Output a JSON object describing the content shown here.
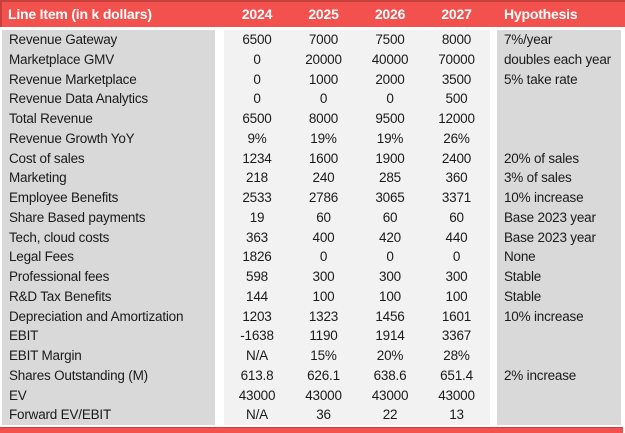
{
  "chart_data": {
    "type": "table",
    "columns": [
      "Line Item (in k dollars)",
      "2024",
      "2025",
      "2026",
      "2027",
      "Hypothesis"
    ],
    "rows": [
      {
        "label": "Revenue Gateway",
        "values": [
          "6500",
          "7000",
          "7500",
          "8000"
        ],
        "hypothesis": "7%/year"
      },
      {
        "label": "Marketplace GMV",
        "values": [
          "0",
          "20000",
          "40000",
          "70000"
        ],
        "hypothesis": "doubles each year"
      },
      {
        "label": "Revenue Marketplace",
        "values": [
          "0",
          "1000",
          "2000",
          "3500"
        ],
        "hypothesis": "5% take rate"
      },
      {
        "label": "Revenue Data Analytics",
        "values": [
          "0",
          "0",
          "0",
          "500"
        ],
        "hypothesis": ""
      },
      {
        "label": "Total Revenue",
        "values": [
          "6500",
          "8000",
          "9500",
          "12000"
        ],
        "hypothesis": ""
      },
      {
        "label": "Revenue Growth YoY",
        "values": [
          "9%",
          "19%",
          "19%",
          "26%"
        ],
        "hypothesis": ""
      },
      {
        "label": "Cost of sales",
        "values": [
          "1234",
          "1600",
          "1900",
          "2400"
        ],
        "hypothesis": "20% of sales"
      },
      {
        "label": "Marketing",
        "values": [
          "218",
          "240",
          "285",
          "360"
        ],
        "hypothesis": "3% of sales"
      },
      {
        "label": "Employee Benefits",
        "values": [
          "2533",
          "2786",
          "3065",
          "3371"
        ],
        "hypothesis": "10% increase"
      },
      {
        "label": "Share Based payments",
        "values": [
          "19",
          "60",
          "60",
          "60"
        ],
        "hypothesis": "Base 2023 year"
      },
      {
        "label": "Tech, cloud costs",
        "values": [
          "363",
          "400",
          "420",
          "440"
        ],
        "hypothesis": "Base 2023 year"
      },
      {
        "label": "Legal Fees",
        "values": [
          "1826",
          "0",
          "0",
          "0"
        ],
        "hypothesis": "None"
      },
      {
        "label": "Professional fees",
        "values": [
          "598",
          "300",
          "300",
          "300"
        ],
        "hypothesis": "Stable"
      },
      {
        "label": "R&D Tax Benefits",
        "values": [
          "144",
          "100",
          "100",
          "100"
        ],
        "hypothesis": "Stable"
      },
      {
        "label": "Depreciation and Amortization",
        "values": [
          "1203",
          "1323",
          "1456",
          "1601"
        ],
        "hypothesis": "10% increase"
      },
      {
        "label": "EBIT",
        "values": [
          "-1638",
          "1190",
          "1914",
          "3367"
        ],
        "hypothesis": ""
      },
      {
        "label": "EBIT Margin",
        "values": [
          "N/A",
          "15%",
          "20%",
          "28%"
        ],
        "hypothesis": ""
      },
      {
        "label": "Shares Outstanding (M)",
        "values": [
          "613.8",
          "626.1",
          "638.6",
          "651.4"
        ],
        "hypothesis": "2% increase"
      },
      {
        "label": "EV",
        "values": [
          "43000",
          "43000",
          "43000",
          "43000"
        ],
        "hypothesis": ""
      },
      {
        "label": "Forward EV/EBIT",
        "values": [
          "N/A",
          "36",
          "22",
          "13"
        ],
        "hypothesis": ""
      }
    ]
  },
  "colors": {
    "header_bg": "#F3514D",
    "header_border": "#C8403C",
    "header_text": "#FFFFFF",
    "label_col_bg": "#D9D9D9",
    "value_col_bg": "#F2F2F2",
    "text": "#1A1A1A"
  }
}
